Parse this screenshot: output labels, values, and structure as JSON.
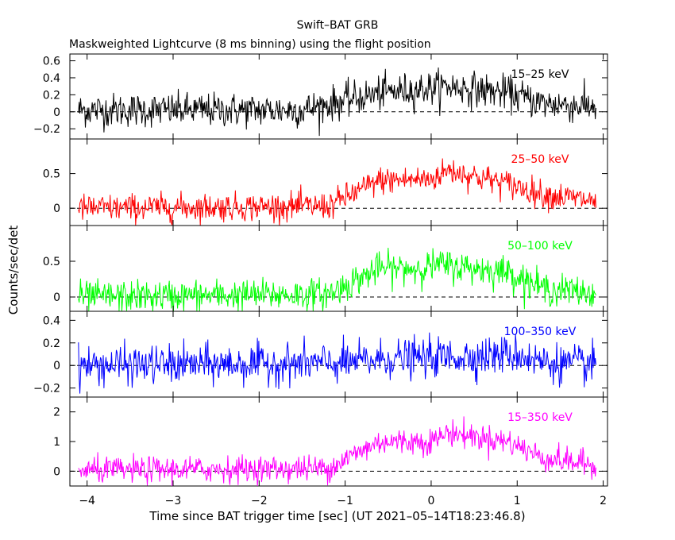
{
  "chart_data": {
    "type": "line",
    "title": "Swift–BAT GRB",
    "subtitle": "Maskweighted Lightcurve (8 ms binning) using the flight position",
    "xlabel": "Time since BAT trigger time [sec] (UT 2021–05–14T18:23:46.8)",
    "ylabel": "Counts/sec/det",
    "xlim": [
      -4.2,
      2.05
    ],
    "x_ticks": [
      -4,
      -3,
      -2,
      -1,
      0,
      1,
      2
    ],
    "x_tick_labels": [
      "−4",
      "−3",
      "−2",
      "−1",
      "0",
      "1",
      "2"
    ],
    "data_range": [
      -4.1,
      1.92
    ],
    "bin_width": 0.008,
    "zero_line": "dashed",
    "panels": [
      {
        "band": "15–25 keV",
        "color": "#000000",
        "ylim": [
          -0.32,
          0.68
        ],
        "y_ticks": [
          -0.2,
          0,
          0.2,
          0.4,
          0.6
        ],
        "y_tick_labels": [
          "−0.2",
          "0",
          "0.2",
          "0.4",
          "0.6"
        ],
        "profile": [
          [
            -4.1,
            0.02
          ],
          [
            -1.5,
            0.02
          ],
          [
            -0.6,
            0.22
          ],
          [
            0.2,
            0.3
          ],
          [
            0.9,
            0.22
          ],
          [
            1.3,
            0.1
          ],
          [
            1.92,
            0.06
          ]
        ],
        "noise": 0.1
      },
      {
        "band": "25–50 keV",
        "color": "#ff0000",
        "ylim": [
          -0.25,
          1.0
        ],
        "y_ticks": [
          0,
          0.5
        ],
        "y_tick_labels": [
          "0",
          "0.5"
        ],
        "profile": [
          [
            -4.1,
            0.0
          ],
          [
            -1.2,
            0.03
          ],
          [
            -0.6,
            0.4
          ],
          [
            0.0,
            0.42
          ],
          [
            0.2,
            0.55
          ],
          [
            0.9,
            0.35
          ],
          [
            1.3,
            0.2
          ],
          [
            1.92,
            0.1
          ]
        ],
        "noise": 0.1
      },
      {
        "band": "50–100 keV",
        "color": "#00ff00",
        "ylim": [
          -0.2,
          1.0
        ],
        "y_ticks": [
          0,
          0.5
        ],
        "y_tick_labels": [
          "0",
          "0.5"
        ],
        "profile": [
          [
            -4.1,
            0.0
          ],
          [
            -1.2,
            0.04
          ],
          [
            -0.6,
            0.4
          ],
          [
            -0.2,
            0.4
          ],
          [
            0.1,
            0.45
          ],
          [
            0.9,
            0.35
          ],
          [
            1.3,
            0.12
          ],
          [
            1.92,
            0.05
          ]
        ],
        "noise": 0.11
      },
      {
        "band": "100–350 keV",
        "color": "#0000ff",
        "ylim": [
          -0.28,
          0.48
        ],
        "y_ticks": [
          -0.2,
          0,
          0.2,
          0.4
        ],
        "y_tick_labels": [
          "−0.2",
          "0",
          "0.2",
          "0.4"
        ],
        "profile": [
          [
            -4.1,
            0.0
          ],
          [
            -1.0,
            0.02
          ],
          [
            -0.5,
            0.06
          ],
          [
            0.5,
            0.08
          ],
          [
            1.0,
            0.1
          ],
          [
            1.3,
            0.03
          ],
          [
            1.92,
            0.0
          ]
        ],
        "noise": 0.085
      },
      {
        "band": "15–350 keV",
        "color": "#ff00ff",
        "ylim": [
          -0.5,
          2.5
        ],
        "y_ticks": [
          0,
          1,
          2
        ],
        "y_tick_labels": [
          "0",
          "1",
          "2"
        ],
        "profile": [
          [
            -4.1,
            0.02
          ],
          [
            -1.2,
            0.1
          ],
          [
            -0.6,
            1.0
          ],
          [
            0.0,
            1.0
          ],
          [
            0.2,
            1.3
          ],
          [
            0.9,
            1.0
          ],
          [
            1.3,
            0.45
          ],
          [
            1.92,
            0.2
          ]
        ],
        "noise": 0.22
      }
    ]
  }
}
